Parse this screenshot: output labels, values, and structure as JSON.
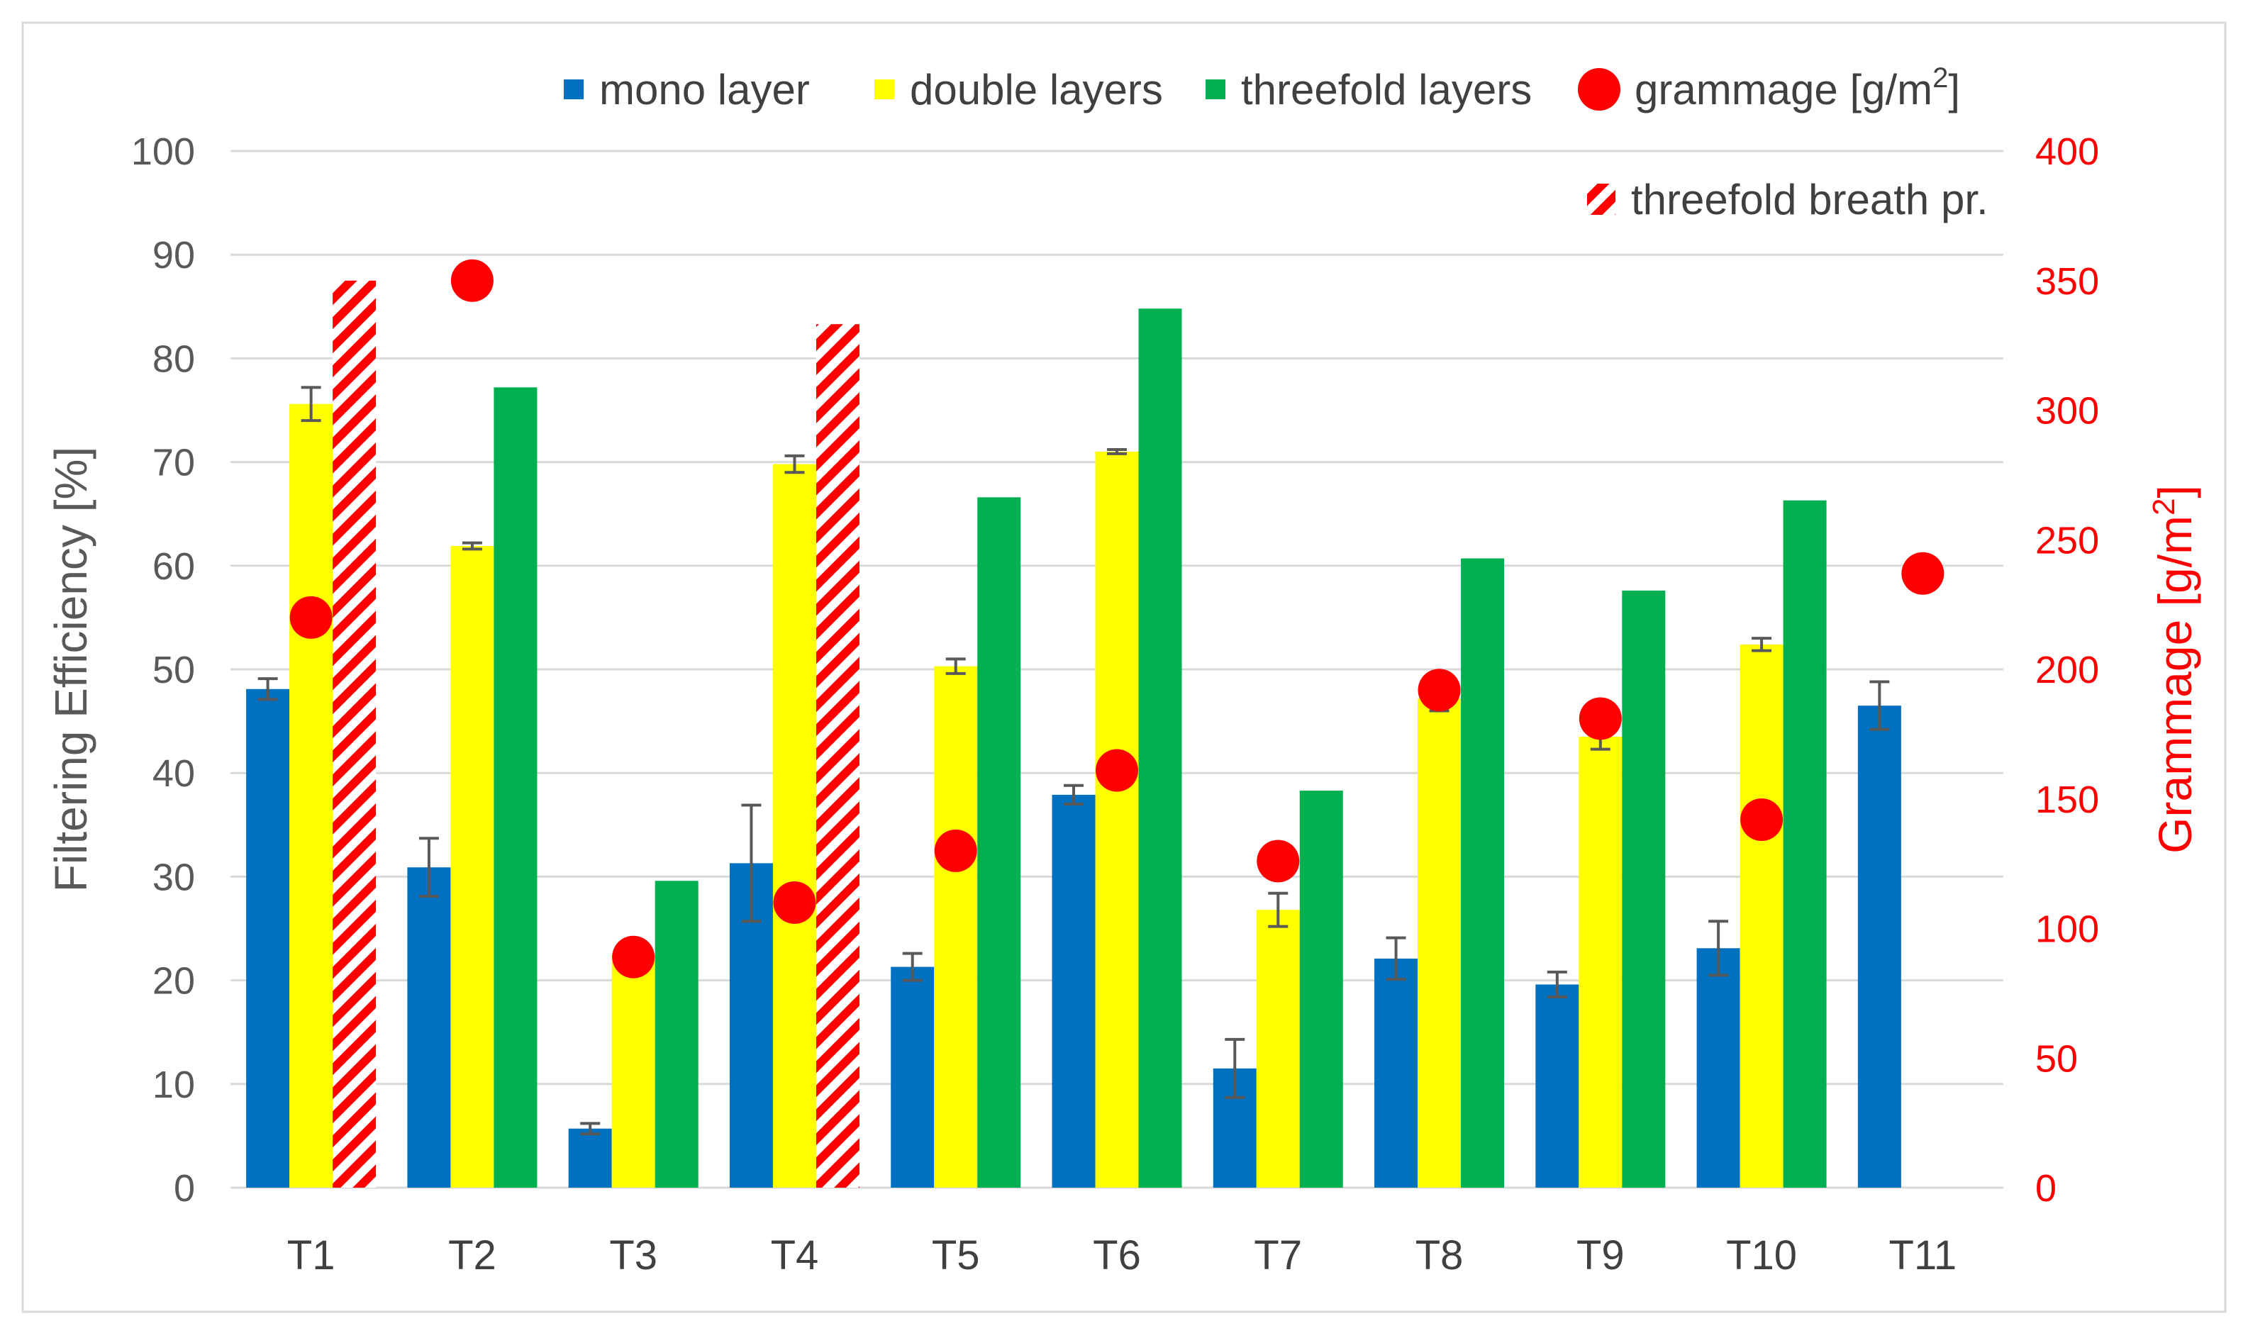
{
  "chart_data": {
    "type": "bar",
    "categories": [
      "T1",
      "T2",
      "T3",
      "T4",
      "T5",
      "T6",
      "T7",
      "T8",
      "T9",
      "T10",
      "T11"
    ],
    "ylabel": "Filtering Efficiency [%]",
    "y2label_main": "Grammage [g/m",
    "y2label_sup": "2",
    "y2label_end": "]",
    "ylim": [
      0,
      100
    ],
    "y2lim": [
      0,
      400
    ],
    "yticks": [
      0,
      10,
      20,
      30,
      40,
      50,
      60,
      70,
      80,
      90,
      100
    ],
    "y2ticks": [
      0,
      50,
      100,
      150,
      200,
      250,
      300,
      350,
      400
    ],
    "grid": true,
    "series": [
      {
        "key": "mono",
        "name": "mono layer",
        "color": "#0070C0",
        "values": [
          48.1,
          30.9,
          5.7,
          31.3,
          21.3,
          37.9,
          11.5,
          22.1,
          19.6,
          23.1,
          46.5
        ],
        "errors": [
          1.0,
          2.8,
          0.5,
          5.6,
          1.3,
          0.9,
          2.8,
          2.0,
          1.2,
          2.6,
          2.3
        ]
      },
      {
        "key": "double",
        "name": "double layers",
        "color": "#FFFF00",
        "values": [
          75.6,
          61.9,
          22.5,
          69.8,
          50.3,
          71.0,
          26.8,
          47.2,
          43.5,
          52.4,
          null
        ],
        "errors": [
          1.6,
          0.3,
          null,
          0.8,
          0.7,
          0.2,
          1.6,
          1.2,
          1.2,
          0.6,
          null
        ]
      },
      {
        "key": "three",
        "name": "threefold layers",
        "color": "#00B050",
        "values": [
          null,
          77.2,
          29.6,
          null,
          66.6,
          84.8,
          38.3,
          60.7,
          57.6,
          66.3,
          null
        ],
        "errors": [
          null,
          null,
          null,
          null,
          null,
          null,
          null,
          null,
          null,
          null,
          null
        ]
      },
      {
        "key": "breath",
        "name": "threefold breath pr.",
        "color": "#FF0000",
        "values": [
          87.5,
          null,
          null,
          83.3,
          null,
          null,
          null,
          null,
          null,
          null,
          null
        ]
      }
    ],
    "grammage": {
      "name_main": "grammage [g/m",
      "name_sup": "2",
      "name_end": "]",
      "color": "#FF0000",
      "axis": "secondary",
      "values": [
        220,
        350,
        89,
        110,
        130,
        161,
        126,
        192,
        181,
        142,
        237
      ]
    },
    "legend_position": "top-right"
  }
}
